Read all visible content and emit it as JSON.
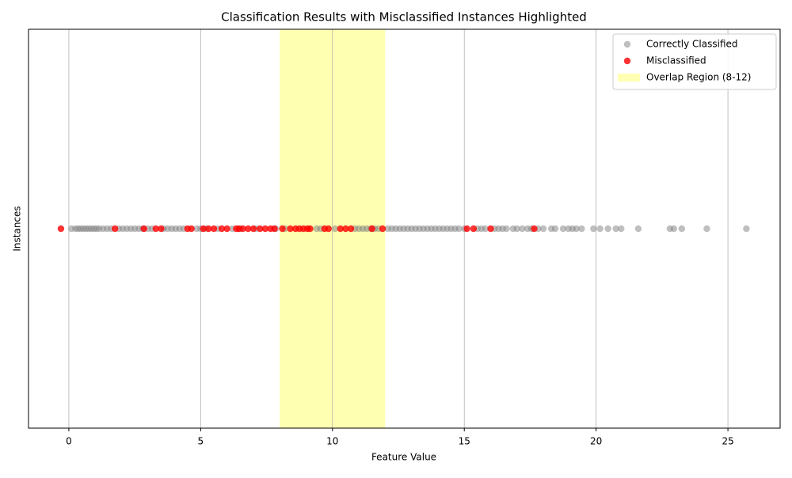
{
  "chart_data": {
    "type": "strip",
    "title": "Classification Results with Misclassified Instances Highlighted",
    "x_label": "Feature Value",
    "y_label": "Instances",
    "xlim": [
      -1.53,
      26.98
    ],
    "xticks": [
      0,
      5,
      10,
      15,
      20,
      25
    ],
    "grid": true,
    "legend": "upper right",
    "span": {
      "name": "Overlap Region (8-12)",
      "range": [
        8,
        12
      ],
      "color": "#ffff00",
      "alpha": 0.3
    },
    "series": [
      {
        "name": "Correctly Classified",
        "color": "#808080",
        "alpha": 0.5,
        "x": [
          0.1,
          0.25,
          0.35,
          0.45,
          0.55,
          0.65,
          0.75,
          0.85,
          0.95,
          1.05,
          1.15,
          1.3,
          1.45,
          1.6,
          1.9,
          2.05,
          2.2,
          2.35,
          2.5,
          2.65,
          2.8,
          3.0,
          3.15,
          3.6,
          3.75,
          3.9,
          4.05,
          4.2,
          4.35,
          4.85,
          5.0,
          5.2,
          5.65,
          6.2,
          6.5,
          7.1,
          7.85,
          8.2,
          9.4,
          9.55,
          10.1,
          10.85,
          11.0,
          11.15,
          11.3,
          11.45,
          11.6,
          11.75,
          12.1,
          12.25,
          12.4,
          12.55,
          12.7,
          12.85,
          13.0,
          13.15,
          13.3,
          13.45,
          13.6,
          13.75,
          13.9,
          14.05,
          14.2,
          14.35,
          14.5,
          14.65,
          14.8,
          15.0,
          15.5,
          15.65,
          15.8,
          16.15,
          16.3,
          16.45,
          16.6,
          16.85,
          17.0,
          17.2,
          17.4,
          17.55,
          17.8,
          18.0,
          18.3,
          18.45,
          18.75,
          18.95,
          19.1,
          19.25,
          19.45,
          19.9,
          20.15,
          20.45,
          20.75,
          20.95,
          21.6,
          22.8,
          22.95,
          23.25,
          24.2,
          25.7
        ]
      },
      {
        "name": "Misclassified",
        "color": "#ff0000",
        "alpha": 0.8,
        "x": [
          -0.3,
          1.75,
          2.85,
          3.3,
          3.5,
          4.5,
          4.65,
          5.1,
          5.3,
          5.5,
          5.8,
          6.0,
          6.35,
          6.45,
          6.6,
          6.8,
          7.0,
          7.25,
          7.45,
          7.65,
          7.8,
          8.1,
          8.4,
          8.6,
          8.75,
          8.9,
          9.05,
          9.15,
          9.7,
          9.85,
          10.3,
          10.5,
          10.7,
          11.5,
          11.9,
          15.1,
          15.35,
          16.0,
          17.65
        ]
      }
    ]
  }
}
